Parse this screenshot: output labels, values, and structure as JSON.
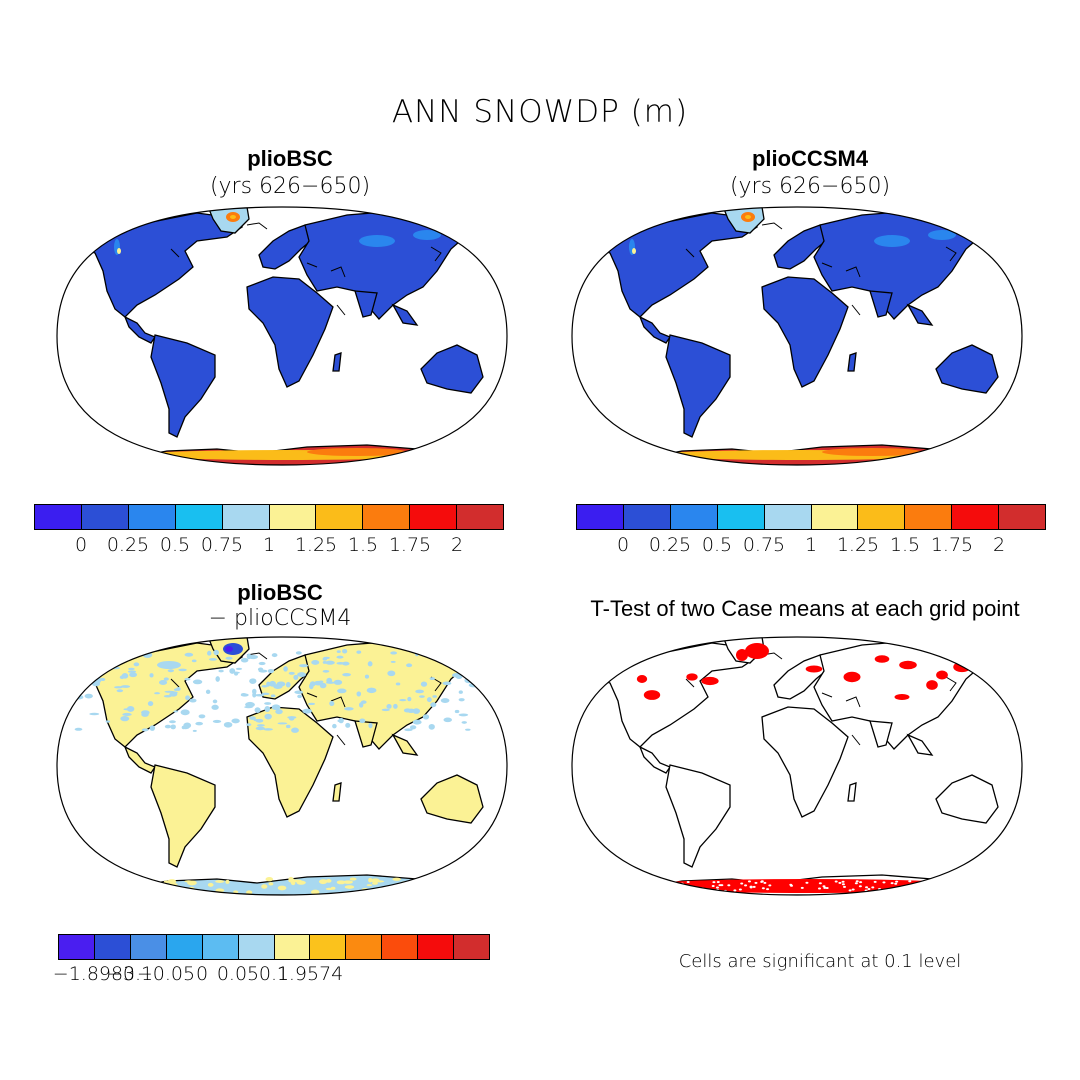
{
  "title": "ANN SNOWDP (m)",
  "panels": [
    {
      "title": "plioBSC",
      "subtitle": "(yrs 626−650)"
    },
    {
      "title": "plioCCSM4",
      "subtitle": "(yrs 626−650)"
    },
    {
      "title": "plioBSC",
      "subtitle": "− plioCCSM4"
    },
    {
      "title": "T-Test of two Case means at each grid point",
      "subtitle": ""
    }
  ],
  "colorbars": {
    "abs": {
      "colors": [
        "#3b1ef0",
        "#2c4fd6",
        "#2a86ee",
        "#19bff0",
        "#a8d8f0",
        "#fbf295",
        "#fbbc19",
        "#fb7c0e",
        "#f50c0c",
        "#d22d2d"
      ],
      "labels": [
        "0",
        "0.25",
        "0.5",
        "0.75",
        "1",
        "1.25",
        "1.5",
        "1.75",
        "2"
      ]
    },
    "diff": {
      "colors": [
        "#4a1ef0",
        "#2c4fd6",
        "#4a8fe6",
        "#2aa6ee",
        "#5cbcf2",
        "#a8d8f0",
        "#fbf295",
        "#fbc21c",
        "#fb8a10",
        "#fb4c0c",
        "#f50c0c",
        "#d22d2d"
      ],
      "labels": [
        "−1.8983",
        "−0.1",
        "−0.05",
        "0",
        "0.05",
        "0.1",
        "1.9574"
      ]
    }
  },
  "colors": {
    "land_snow": "#2c4fd6",
    "antarctica": "#d22d2d",
    "diff_land": "#fbf295",
    "significant": "#ff0000"
  },
  "note": "Cells are significant at 0.1 level"
}
